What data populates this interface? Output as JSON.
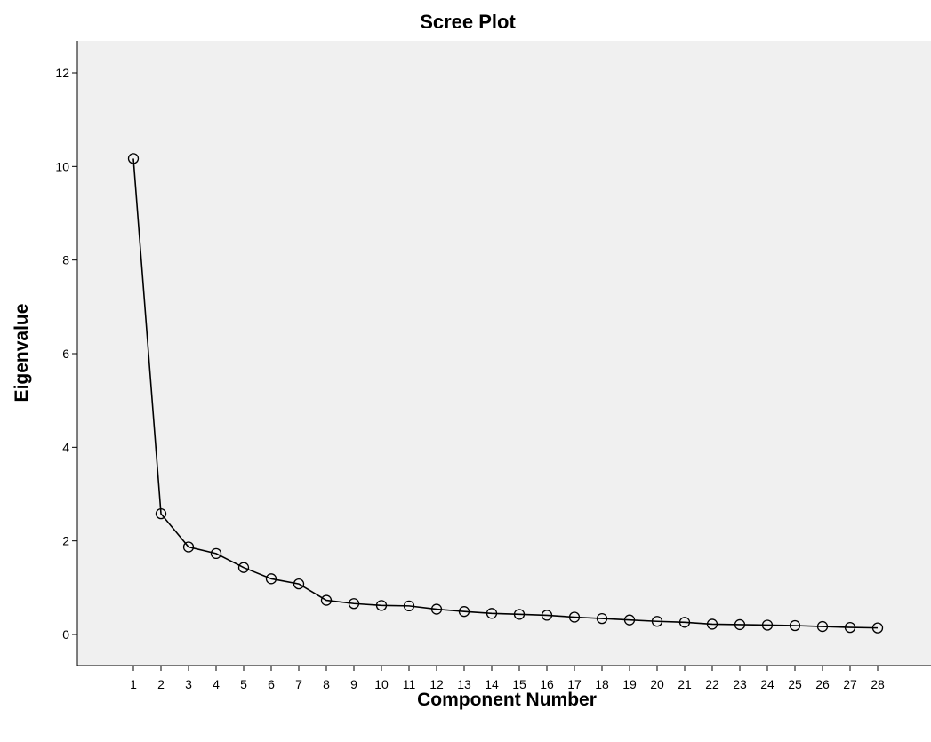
{
  "chart_data": {
    "type": "line",
    "title": "Scree Plot",
    "xlabel": "Component Number",
    "ylabel": "Eigenvalue",
    "x": [
      1,
      2,
      3,
      4,
      5,
      6,
      7,
      8,
      9,
      10,
      11,
      12,
      13,
      14,
      15,
      16,
      17,
      18,
      19,
      20,
      21,
      22,
      23,
      24,
      25,
      26,
      27,
      28
    ],
    "x_tick_labels": [
      "1",
      "2",
      "3",
      "4",
      "5",
      "6",
      "7",
      "8",
      "9",
      "10",
      "11",
      "12",
      "13",
      "14",
      "15",
      "16",
      "17",
      "18",
      "19",
      "20",
      "21",
      "22",
      "23",
      "24",
      "25",
      "26",
      "27",
      "28"
    ],
    "y_ticks": [
      0,
      2,
      4,
      6,
      8,
      10,
      12
    ],
    "y_tick_labels": [
      "0",
      "2",
      "4",
      "6",
      "8",
      "10",
      "12"
    ],
    "ylim": [
      -0.65,
      12.7
    ],
    "series": [
      {
        "values": [
          10.17,
          2.58,
          1.87,
          1.73,
          1.43,
          1.19,
          1.08,
          0.73,
          0.66,
          0.62,
          0.61,
          0.54,
          0.49,
          0.45,
          0.43,
          0.41,
          0.37,
          0.34,
          0.31,
          0.28,
          0.26,
          0.22,
          0.21,
          0.2,
          0.19,
          0.17,
          0.15,
          0.14
        ],
        "marker": "open-circle",
        "color": "#000000"
      }
    ],
    "grid": false,
    "plot_background": "#f0f0f0"
  }
}
